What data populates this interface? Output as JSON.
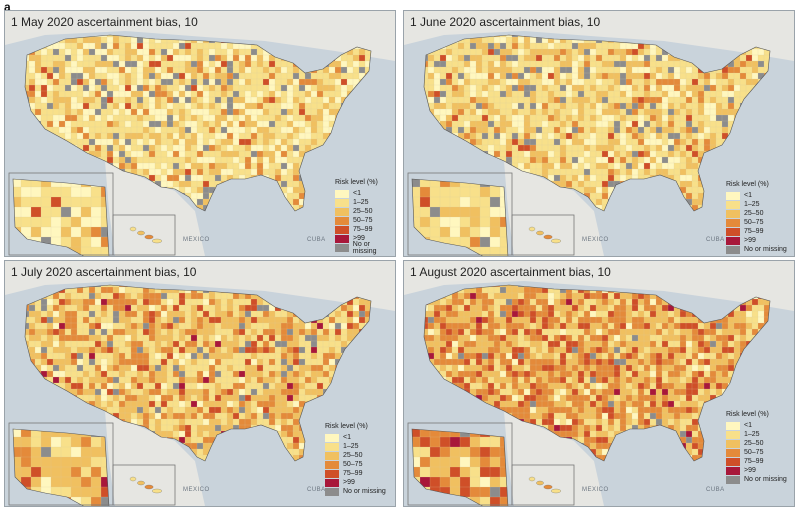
{
  "figure_label": "a",
  "colors": {
    "ocean": "#c9d3db",
    "land": "#e6e6e2",
    "lt1": "#fff7bf",
    "1to25": "#f8e08a",
    "25to50": "#f0c060",
    "50to75": "#e48a3a",
    "75to99": "#cf4f28",
    "gt99": "#a8173a",
    "missing": "#8c8c8c"
  },
  "legend": {
    "title": "Risk level (%)",
    "items": [
      {
        "label": "<1",
        "color": "#fff7bf"
      },
      {
        "label": "1–25",
        "color": "#f8e08a"
      },
      {
        "label": "25–50",
        "color": "#f0c060"
      },
      {
        "label": "50–75",
        "color": "#e48a3a"
      },
      {
        "label": "75–99",
        "color": "#cf4f28"
      },
      {
        "label": ">99",
        "color": "#a8173a"
      },
      {
        "label": "No or missing",
        "color": "#8c8c8c"
      }
    ]
  },
  "labels": {
    "mexico": "MEXICO",
    "cuba": "CUBA"
  },
  "panels": [
    {
      "title": "1 May 2020 ascertainment bias, 10",
      "mix": [
        0.24,
        0.4,
        0.2,
        0.06,
        0.02,
        0.0,
        0.08
      ]
    },
    {
      "title": "1 June 2020 ascertainment bias, 10",
      "mix": [
        0.16,
        0.42,
        0.24,
        0.08,
        0.03,
        0.0,
        0.07
      ]
    },
    {
      "title": "1 July 2020 ascertainment bias, 10",
      "mix": [
        0.06,
        0.3,
        0.32,
        0.2,
        0.06,
        0.01,
        0.05
      ]
    },
    {
      "title": "1 August 2020 ascertainment bias, 10",
      "mix": [
        0.03,
        0.16,
        0.3,
        0.32,
        0.15,
        0.02,
        0.02
      ]
    }
  ]
}
